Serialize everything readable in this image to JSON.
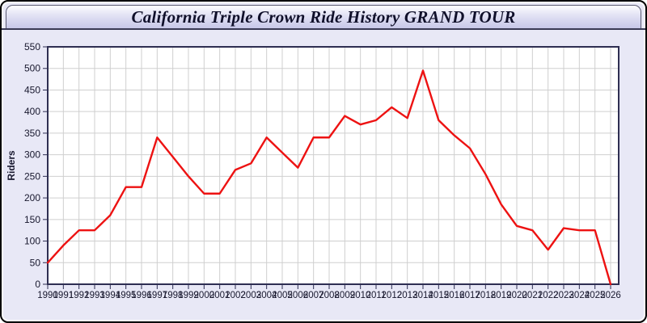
{
  "header": {
    "title": "California Triple Crown Ride History GRAND TOUR"
  },
  "chart_data": {
    "type": "line",
    "title": "California Triple Crown Ride History GRAND TOUR",
    "xlabel": "",
    "ylabel": "Riders",
    "x": [
      1990,
      1991,
      1992,
      1993,
      1994,
      1995,
      1996,
      1997,
      1998,
      1999,
      2000,
      2001,
      2002,
      2003,
      2004,
      2005,
      2006,
      2007,
      2008,
      2009,
      2010,
      2011,
      2012,
      2013,
      2014,
      2015,
      2016,
      2017,
      2018,
      2019,
      2020,
      2021,
      2022,
      2023,
      2024,
      2025,
      2026
    ],
    "series": [
      {
        "name": "Riders",
        "values": [
          50,
          90,
          125,
          125,
          160,
          225,
          225,
          340,
          295,
          250,
          210,
          210,
          265,
          280,
          340,
          305,
          270,
          340,
          340,
          390,
          370,
          380,
          410,
          385,
          495,
          380,
          345,
          315,
          255,
          185,
          135,
          125,
          80,
          130,
          125,
          125,
          0
        ]
      }
    ],
    "ylim": [
      0,
      550
    ],
    "ytick_step": 50,
    "yticks": [
      0,
      50,
      100,
      150,
      200,
      250,
      300,
      350,
      400,
      450,
      500,
      550
    ],
    "grid": true,
    "legend_position": "none"
  },
  "colors": {
    "frame_border": "#000000",
    "body_background": "#e8e8f6",
    "titlebar_gradient_top": "#ffffff",
    "titlebar_gradient_bottom": "#c7c7e8",
    "plot_background": "#ffffff",
    "grid": "#cfcfcf",
    "axis": "#2e2e52",
    "tick_text": "#18182e",
    "line": "#ed1212"
  }
}
